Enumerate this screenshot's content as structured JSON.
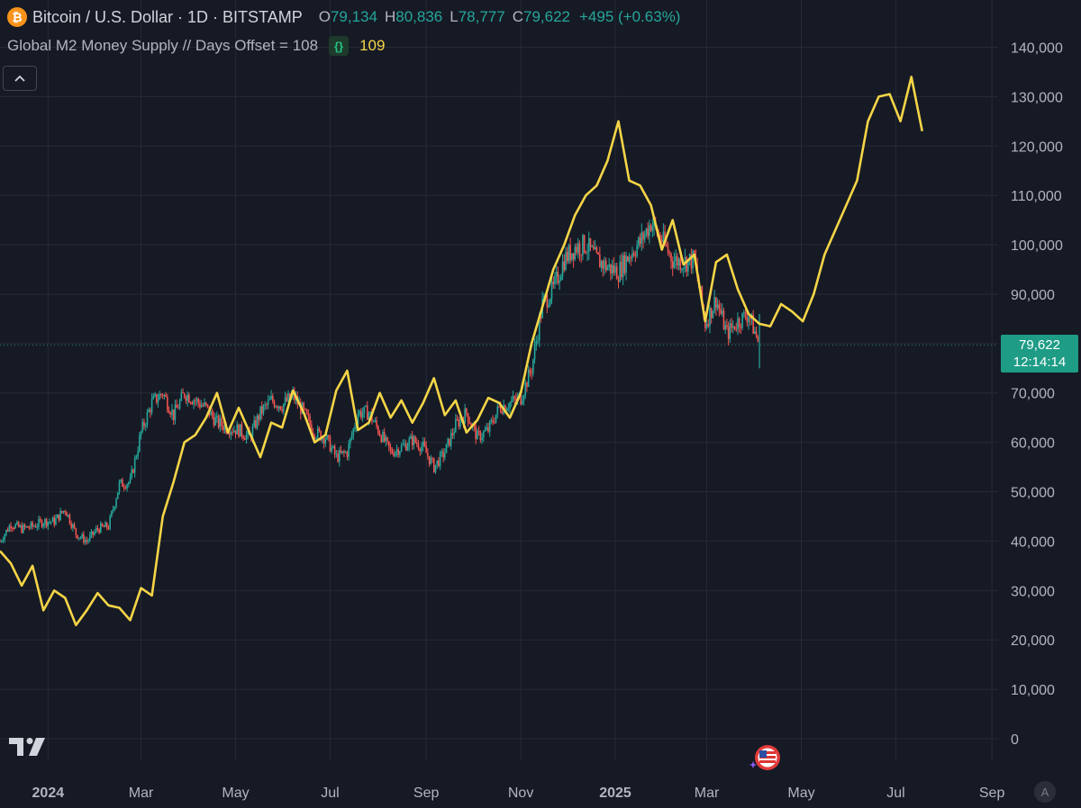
{
  "header": {
    "symbol": "Bitcoin / U.S. Dollar · 1D · BITSTAMP",
    "open_label": "O",
    "open": "79,134",
    "high_label": "H",
    "high": "80,836",
    "low_label": "L",
    "low": "78,777",
    "close_label": "C",
    "close": "79,622",
    "change": "+495 (+0.63%)"
  },
  "indicator": {
    "name": "Global M2 Money Supply // Days Offset = 108",
    "badge": "{}",
    "value": "109"
  },
  "price_tag": {
    "price": "79,622",
    "countdown": "12:14:14"
  },
  "auto_button": "A",
  "colors": {
    "background": "#161a25",
    "grid": "#262a35",
    "up": "#26a69a",
    "down": "#ef5350",
    "m2_line": "#f5d547",
    "axis_text": "#b2b5be"
  },
  "icons": [
    "bitcoin-logo-icon",
    "collapse-chevron-icon",
    "tradingview-logo-icon",
    "us-flag-event-icon"
  ],
  "chart_data": {
    "type": "line",
    "title": "",
    "xlabel": "",
    "ylabel": "",
    "ylim": [
      0,
      150000
    ],
    "grid": true,
    "last_price": 79622,
    "yticks": [
      0,
      10000,
      20000,
      30000,
      40000,
      50000,
      60000,
      70000,
      80000,
      90000,
      100000,
      110000,
      120000,
      130000,
      140000
    ],
    "ytick_labels": [
      "0",
      "10,000",
      "20,000",
      "30,000",
      "40,000",
      "50,000",
      "60,000",
      "70,000",
      "80,000",
      "90,000",
      "100,000",
      "110,000",
      "120,000",
      "130,000",
      "140,000"
    ],
    "xticks": [
      "2024-01-01",
      "2024-03-01",
      "2024-05-01",
      "2024-07-01",
      "2024-09-01",
      "2024-11-01",
      "2025-01-01",
      "2025-03-01",
      "2025-05-01",
      "2025-07-01",
      "2025-09-01"
    ],
    "xtick_labels": [
      "2024",
      "Mar",
      "May",
      "Jul",
      "Sep",
      "Nov",
      "2025",
      "Mar",
      "May",
      "Jul",
      "Sep"
    ],
    "xlim": [
      "2023-12-01",
      "2025-09-05"
    ],
    "series": [
      {
        "name": "Bitcoin / U.S. Dollar",
        "style": "candles",
        "x": [
          "2023-12-01",
          "2023-12-08",
          "2023-12-15",
          "2023-12-22",
          "2023-12-29",
          "2024-01-05",
          "2024-01-12",
          "2024-01-19",
          "2024-01-26",
          "2024-02-02",
          "2024-02-09",
          "2024-02-16",
          "2024-02-23",
          "2024-03-01",
          "2024-03-08",
          "2024-03-15",
          "2024-03-22",
          "2024-03-29",
          "2024-04-05",
          "2024-04-12",
          "2024-04-19",
          "2024-04-26",
          "2024-05-03",
          "2024-05-10",
          "2024-05-17",
          "2024-05-24",
          "2024-05-31",
          "2024-06-07",
          "2024-06-14",
          "2024-06-21",
          "2024-06-28",
          "2024-07-05",
          "2024-07-12",
          "2024-07-19",
          "2024-07-26",
          "2024-08-02",
          "2024-08-09",
          "2024-08-16",
          "2024-08-23",
          "2024-08-30",
          "2024-09-06",
          "2024-09-13",
          "2024-09-20",
          "2024-09-27",
          "2024-10-04",
          "2024-10-11",
          "2024-10-18",
          "2024-10-25",
          "2024-11-01",
          "2024-11-08",
          "2024-11-15",
          "2024-11-22",
          "2024-11-29",
          "2024-12-06",
          "2024-12-13",
          "2024-12-20",
          "2024-12-27",
          "2025-01-03",
          "2025-01-10",
          "2025-01-17",
          "2025-01-24",
          "2025-01-31",
          "2025-02-07",
          "2025-02-14",
          "2025-02-21",
          "2025-02-28",
          "2025-03-07",
          "2025-03-14",
          "2025-03-21",
          "2025-03-28",
          "2025-04-04"
        ],
        "values": [
          40000,
          43500,
          42500,
          43000,
          44000,
          44000,
          46500,
          41500,
          40000,
          42500,
          43000,
          51500,
          52000,
          62000,
          68000,
          70000,
          65500,
          70000,
          68500,
          67000,
          64000,
          63000,
          62500,
          61000,
          66000,
          68500,
          67500,
          69500,
          66000,
          62000,
          61000,
          57000,
          58000,
          66000,
          66000,
          62000,
          58000,
          59000,
          60500,
          59000,
          55000,
          58000,
          63500,
          66000,
          61000,
          62500,
          67000,
          68000,
          69000,
          75000,
          88000,
          91000,
          97000,
          99500,
          100000,
          97000,
          95500,
          94500,
          98000,
          100500,
          104500,
          101000,
          97000,
          96500,
          97000,
          84000,
          89000,
          82000,
          84500,
          86000,
          79622
        ]
      },
      {
        "name": "Global M2 Money Supply // Days Offset = 108",
        "style": "line",
        "x": [
          "2023-12-01",
          "2023-12-08",
          "2023-12-15",
          "2023-12-22",
          "2023-12-29",
          "2024-01-05",
          "2024-01-12",
          "2024-01-19",
          "2024-01-26",
          "2024-02-02",
          "2024-02-09",
          "2024-02-16",
          "2024-02-23",
          "2024-03-01",
          "2024-03-08",
          "2024-03-15",
          "2024-03-22",
          "2024-03-29",
          "2024-04-05",
          "2024-04-12",
          "2024-04-19",
          "2024-04-26",
          "2024-05-03",
          "2024-05-10",
          "2024-05-17",
          "2024-05-24",
          "2024-05-31",
          "2024-06-07",
          "2024-06-14",
          "2024-06-21",
          "2024-06-28",
          "2024-07-05",
          "2024-07-12",
          "2024-07-19",
          "2024-07-26",
          "2024-08-02",
          "2024-08-09",
          "2024-08-16",
          "2024-08-23",
          "2024-08-30",
          "2024-09-06",
          "2024-09-13",
          "2024-09-20",
          "2024-09-27",
          "2024-10-04",
          "2024-10-11",
          "2024-10-18",
          "2024-10-25",
          "2024-11-01",
          "2024-11-08",
          "2024-11-15",
          "2024-11-22",
          "2024-11-29",
          "2024-12-06",
          "2024-12-13",
          "2024-12-20",
          "2024-12-27",
          "2025-01-03",
          "2025-01-10",
          "2025-01-17",
          "2025-01-24",
          "2025-01-31",
          "2025-02-07",
          "2025-02-14",
          "2025-02-21",
          "2025-02-28",
          "2025-03-07",
          "2025-03-14",
          "2025-03-21",
          "2025-03-28",
          "2025-04-04",
          "2025-04-11",
          "2025-04-18",
          "2025-04-25",
          "2025-05-02",
          "2025-05-09",
          "2025-05-16",
          "2025-05-23",
          "2025-05-30",
          "2025-06-06",
          "2025-06-13",
          "2025-06-20",
          "2025-06-27",
          "2025-07-04",
          "2025-07-11",
          "2025-07-18"
        ],
        "values": [
          38000,
          35500,
          31000,
          35000,
          26000,
          30000,
          28500,
          23000,
          26000,
          29500,
          27000,
          26500,
          24000,
          30500,
          29000,
          45000,
          52000,
          60000,
          61500,
          65000,
          70000,
          62000,
          67000,
          62000,
          57000,
          64000,
          63000,
          70500,
          66000,
          60000,
          61500,
          70500,
          74500,
          62500,
          64000,
          70000,
          65000,
          68500,
          64000,
          68000,
          73000,
          65500,
          68500,
          62000,
          64500,
          69000,
          68000,
          65000,
          70000,
          80000,
          87500,
          95000,
          100000,
          106000,
          110000,
          112000,
          117000,
          125000,
          113000,
          112000,
          108000,
          99000,
          105000,
          96000,
          98000,
          84500,
          96500,
          98000,
          91000,
          86000,
          84000,
          83500,
          88000,
          86500,
          84500,
          90000,
          98000,
          103000,
          108000,
          113000,
          125000,
          130000,
          130500,
          125000,
          134000,
          123000
        ]
      }
    ]
  }
}
